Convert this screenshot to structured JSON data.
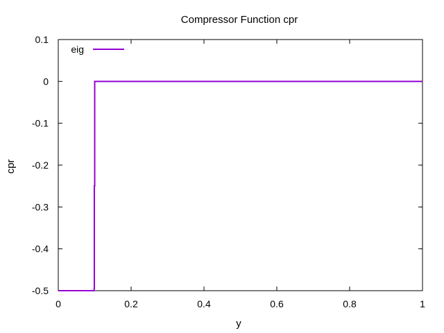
{
  "chart_data": {
    "type": "line",
    "title": "Compressor Function cpr",
    "xlabel": "y",
    "ylabel": "cpr",
    "xlim": [
      0,
      1
    ],
    "ylim": [
      -0.5,
      0.1
    ],
    "xticks": [
      0,
      0.2,
      0.4,
      0.6,
      0.8,
      1
    ],
    "xtick_labels": [
      "0",
      "0.2",
      "0.4",
      "0.6",
      "0.8",
      "1"
    ],
    "yticks": [
      0.1,
      0,
      -0.1,
      -0.2,
      -0.3,
      -0.4,
      -0.5
    ],
    "ytick_labels": [
      "0.1",
      "0",
      "-0.1",
      "-0.2",
      "-0.3",
      "-0.4",
      "-0.5"
    ],
    "grid": false,
    "legend_position": "top-left",
    "series": [
      {
        "name": "eig",
        "color": "#9400d3",
        "x": [
          0,
          0.098,
          0.099,
          0.099,
          0.1,
          0.1,
          1
        ],
        "y": [
          -0.5,
          -0.5,
          -0.495,
          -0.25,
          -0.25,
          0,
          0
        ]
      }
    ]
  }
}
